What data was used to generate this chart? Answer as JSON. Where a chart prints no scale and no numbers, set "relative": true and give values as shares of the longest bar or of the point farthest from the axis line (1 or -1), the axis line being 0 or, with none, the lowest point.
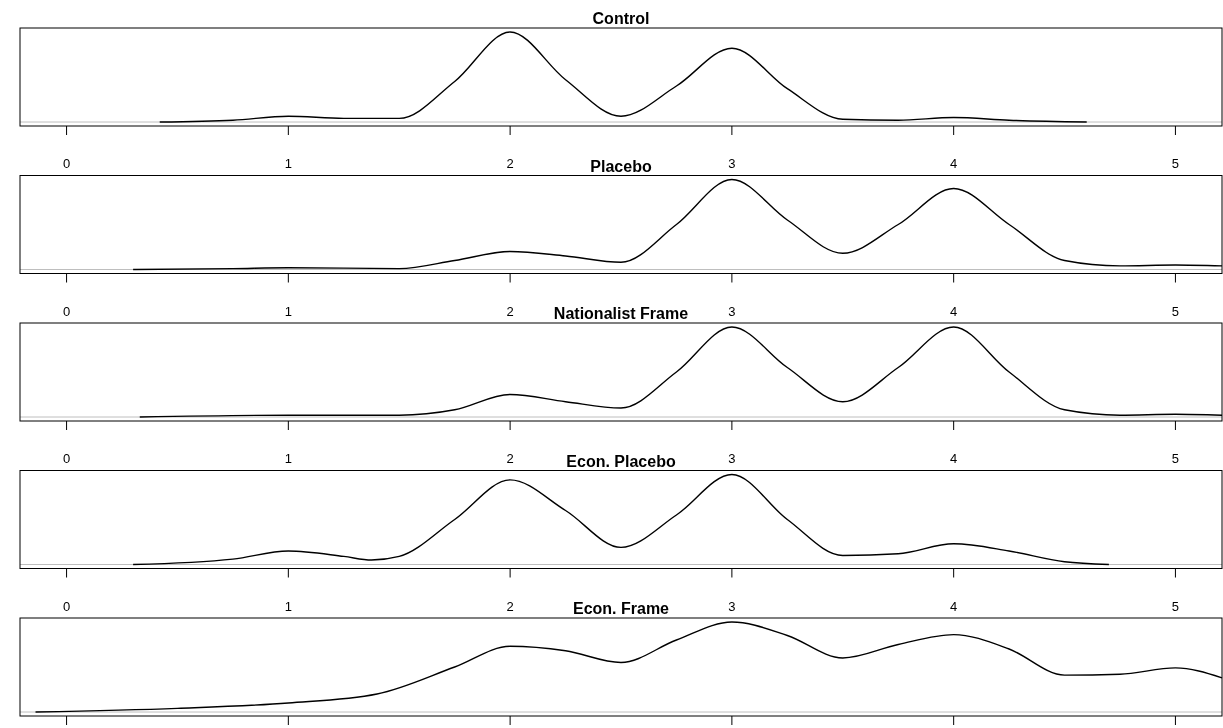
{
  "chart_data": [
    {
      "type": "line",
      "title": "Control",
      "relative": true,
      "tick_labels": "x",
      "xlim": [
        -0.21,
        5.21
      ],
      "xticks": [
        0,
        1,
        2,
        3,
        4,
        5
      ],
      "series": [
        {
          "color": "#000000",
          "x": [
            0.42,
            0.75,
            1,
            1.25,
            1.5,
            1.75,
            2,
            2.25,
            2.5,
            2.75,
            3,
            3.25,
            3.5,
            3.75,
            4,
            4.25,
            4.6
          ],
          "values": [
            0,
            0.02,
            0.064,
            0.04,
            0.04,
            0.45,
            1,
            0.47,
            0.064,
            0.4,
            0.82,
            0.37,
            0.03,
            0.02,
            0.05,
            0.02,
            0
          ]
        }
      ]
    },
    {
      "type": "line",
      "title": "Placebo",
      "relative": true,
      "tick_labels": "x",
      "xlim": [
        -0.21,
        5.21
      ],
      "xticks": [
        0,
        1,
        2,
        3,
        4,
        5
      ],
      "series": [
        {
          "color": "#000000",
          "x": [
            0.3,
            0.75,
            1,
            1.5,
            1.75,
            2,
            2.25,
            2.5,
            2.75,
            3,
            3.25,
            3.5,
            3.75,
            4,
            4.25,
            4.5,
            4.75,
            5,
            5.21
          ],
          "values": [
            0,
            0.01,
            0.02,
            0.01,
            0.1,
            0.2,
            0.15,
            0.08,
            0.5,
            1,
            0.55,
            0.18,
            0.5,
            0.9,
            0.5,
            0.1,
            0.04,
            0.05,
            0.04
          ]
        }
      ]
    },
    {
      "type": "line",
      "title": "Nationalist Frame",
      "relative": true,
      "tick_labels": "x",
      "xlim": [
        -0.21,
        5.21
      ],
      "xticks": [
        0,
        1,
        2,
        3,
        4,
        5
      ],
      "series": [
        {
          "color": "#000000",
          "x": [
            0.33,
            1,
            1.5,
            1.75,
            2,
            2.25,
            2.5,
            2.75,
            3,
            3.25,
            3.5,
            3.75,
            4,
            4.25,
            4.5,
            4.75,
            5,
            5.21
          ],
          "values": [
            0,
            0.02,
            0.02,
            0.08,
            0.25,
            0.17,
            0.1,
            0.5,
            1,
            0.55,
            0.17,
            0.55,
            1,
            0.5,
            0.08,
            0.02,
            0.03,
            0.02
          ]
        }
      ]
    },
    {
      "type": "line",
      "title": "Econ. Placebo",
      "relative": true,
      "tick_labels": "x",
      "xlim": [
        -0.21,
        5.21
      ],
      "xticks": [
        0,
        1,
        2,
        3,
        4,
        5
      ],
      "series": [
        {
          "color": "#000000",
          "x": [
            0.3,
            0.75,
            1,
            1.25,
            1.375,
            1.5,
            1.75,
            2,
            2.25,
            2.5,
            2.75,
            3,
            3.25,
            3.5,
            3.75,
            4,
            4.25,
            4.5,
            4.7
          ],
          "values": [
            0,
            0.06,
            0.15,
            0.09,
            0.05,
            0.09,
            0.5,
            0.94,
            0.6,
            0.19,
            0.55,
            1,
            0.5,
            0.1,
            0.12,
            0.23,
            0.15,
            0.03,
            0
          ]
        }
      ]
    },
    {
      "type": "line",
      "title": "Econ. Frame",
      "relative": true,
      "tick_labels": false,
      "xlim": [
        -0.21,
        5.21
      ],
      "xticks": [
        0,
        1,
        2,
        3,
        4,
        5
      ],
      "series": [
        {
          "color": "#000000",
          "x": [
            -0.14,
            0.5,
            1,
            1.4,
            1.75,
            2,
            2.25,
            2.5,
            2.75,
            3,
            3.25,
            3.5,
            3.75,
            4,
            4.25,
            4.5,
            4.75,
            5,
            5.21
          ],
          "values": [
            0,
            0.04,
            0.1,
            0.2,
            0.5,
            0.73,
            0.68,
            0.55,
            0.8,
            1,
            0.85,
            0.6,
            0.75,
            0.86,
            0.7,
            0.41,
            0.42,
            0.49,
            0.38
          ]
        }
      ]
    }
  ]
}
